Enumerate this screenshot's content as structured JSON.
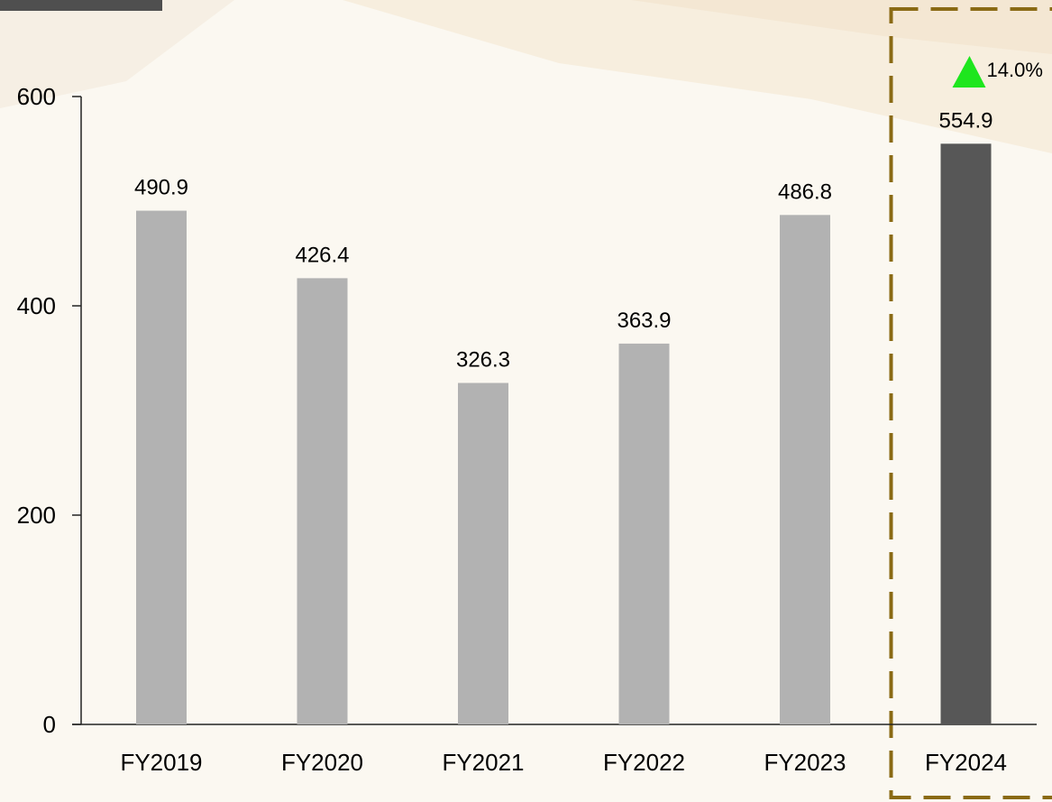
{
  "chart_data": {
    "type": "bar",
    "title": "",
    "xlabel": "",
    "ylabel": "",
    "categories": [
      "FY2019",
      "FY2020",
      "FY2021",
      "FY2022",
      "FY2023",
      "FY2024"
    ],
    "values": [
      490.9,
      426.4,
      326.3,
      363.9,
      486.8,
      554.9
    ],
    "value_labels": [
      "490.9",
      "426.4",
      "326.3",
      "363.9",
      "486.8",
      "554.9"
    ],
    "ylim": [
      0,
      600
    ],
    "yticks": [
      0,
      200,
      400,
      600
    ],
    "ytick_labels": [
      "0",
      "200",
      "400",
      "600"
    ],
    "grid": false,
    "highlight": {
      "category": "FY2024",
      "growth_label": "14.0%",
      "growth_icon": "up-triangle-icon"
    },
    "colors": {
      "bar": "#b2b2b2",
      "highlight_bar": "#575757",
      "highlight_box": "#8a6a14",
      "growth_icon": "#1ee61e",
      "axis": "#222222",
      "text": "#000000"
    }
  }
}
